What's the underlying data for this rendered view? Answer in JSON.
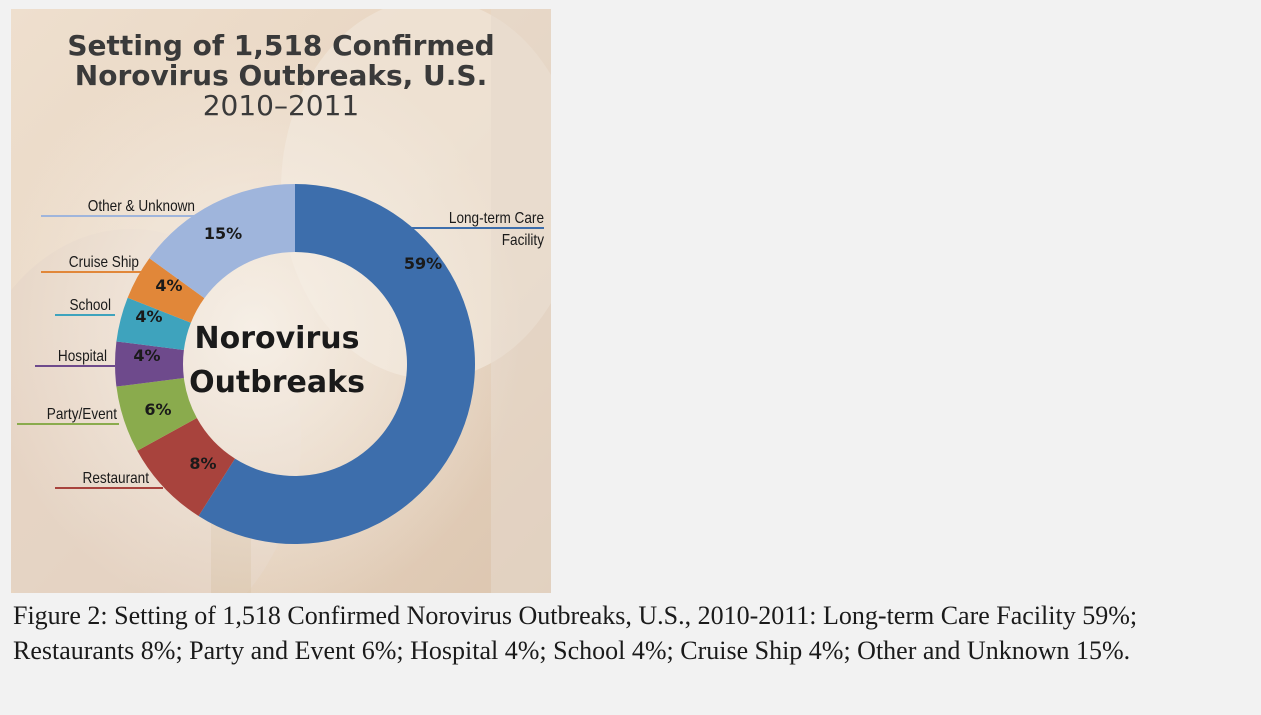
{
  "chart_data": {
    "type": "pie",
    "title_lines": [
      "Setting of 1,518 Confirmed",
      "Norovirus Outbreaks, U.S.",
      "2010–2011"
    ],
    "center_label_lines": [
      "Norovirus",
      "Outbreaks"
    ],
    "slices": [
      {
        "name": "Long-term Care Facility",
        "name_lines": [
          "Long-term Care",
          "Facility"
        ],
        "value": 59,
        "value_label": "59%",
        "color": "#3d6eac"
      },
      {
        "name": "Restaurant",
        "name_lines": [
          "Restaurant"
        ],
        "value": 8,
        "value_label": "8%",
        "color": "#a8433d"
      },
      {
        "name": "Party/Event",
        "name_lines": [
          "Party/Event"
        ],
        "value": 6,
        "value_label": "6%",
        "color": "#8aab4d"
      },
      {
        "name": "Hospital",
        "name_lines": [
          "Hospital"
        ],
        "value": 4,
        "value_label": "4%",
        "color": "#6e4a8c"
      },
      {
        "name": "School",
        "name_lines": [
          "School"
        ],
        "value": 4,
        "value_label": "4%",
        "color": "#3ea3bd"
      },
      {
        "name": "Cruise Ship",
        "name_lines": [
          "Cruise Ship"
        ],
        "value": 4,
        "value_label": "4%",
        "color": "#e18739"
      },
      {
        "name": "Other & Unknown",
        "name_lines": [
          "Other & Unknown"
        ],
        "value": 15,
        "value_label": "15%",
        "color": "#9fb5dc"
      }
    ]
  },
  "caption": "Figure 2: Setting of 1,518 Confirmed Norovirus Outbreaks, U.S., 2010-2011: Long-term Care Facility 59%; Restaurants 8%; Party and Event 6%; Hospital 4%; School 4%; Cruise Ship 4%; Other and Unknown 15%."
}
